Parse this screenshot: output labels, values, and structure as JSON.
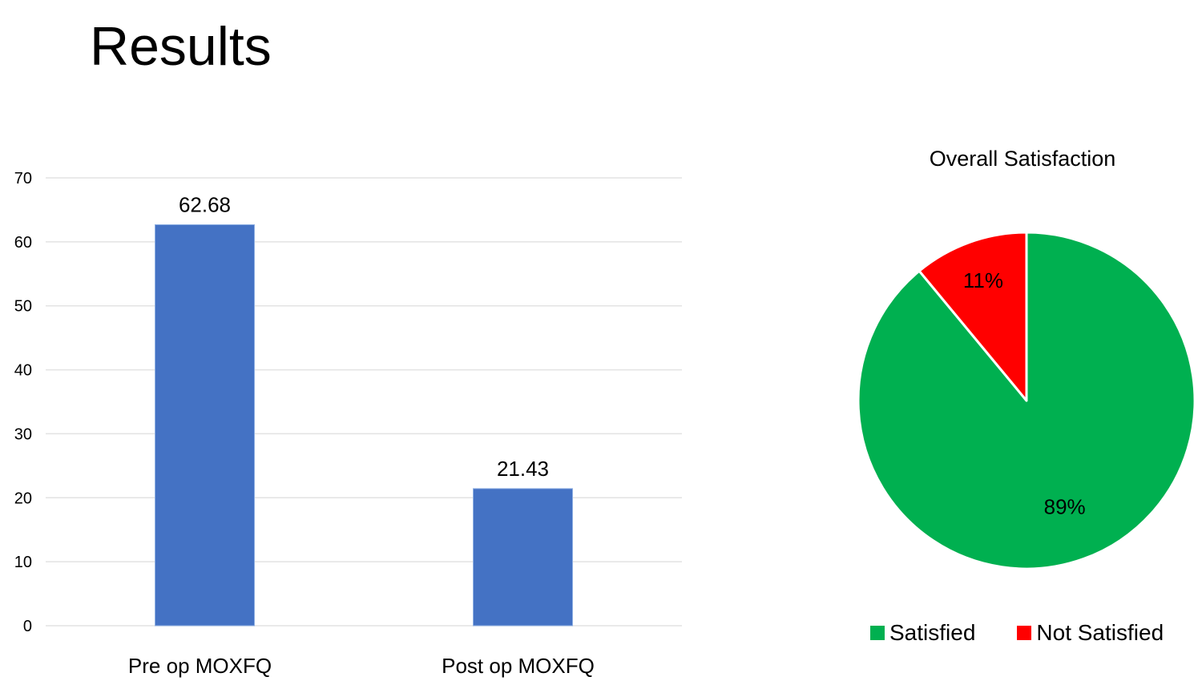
{
  "slide": {
    "title": "Results"
  },
  "chart_data": [
    {
      "type": "bar",
      "categories": [
        "Pre op MOXFQ",
        "Post op MOXFQ"
      ],
      "values": [
        62.68,
        21.43
      ],
      "data_labels": [
        "62.68",
        "21.43"
      ],
      "ylim": [
        0,
        70
      ],
      "yticks": [
        0,
        10,
        20,
        30,
        40,
        50,
        60,
        70
      ],
      "grid": true,
      "bar_color": "#4472C4"
    },
    {
      "type": "pie",
      "title": "Overall Satisfaction",
      "slices": [
        {
          "label": "Satisfied",
          "value": 89,
          "display": "89%",
          "color": "#00B050"
        },
        {
          "label": "Not Satisfied",
          "value": 11,
          "display": "11%",
          "color": "#FF0000"
        }
      ],
      "legend": "bottom"
    }
  ]
}
